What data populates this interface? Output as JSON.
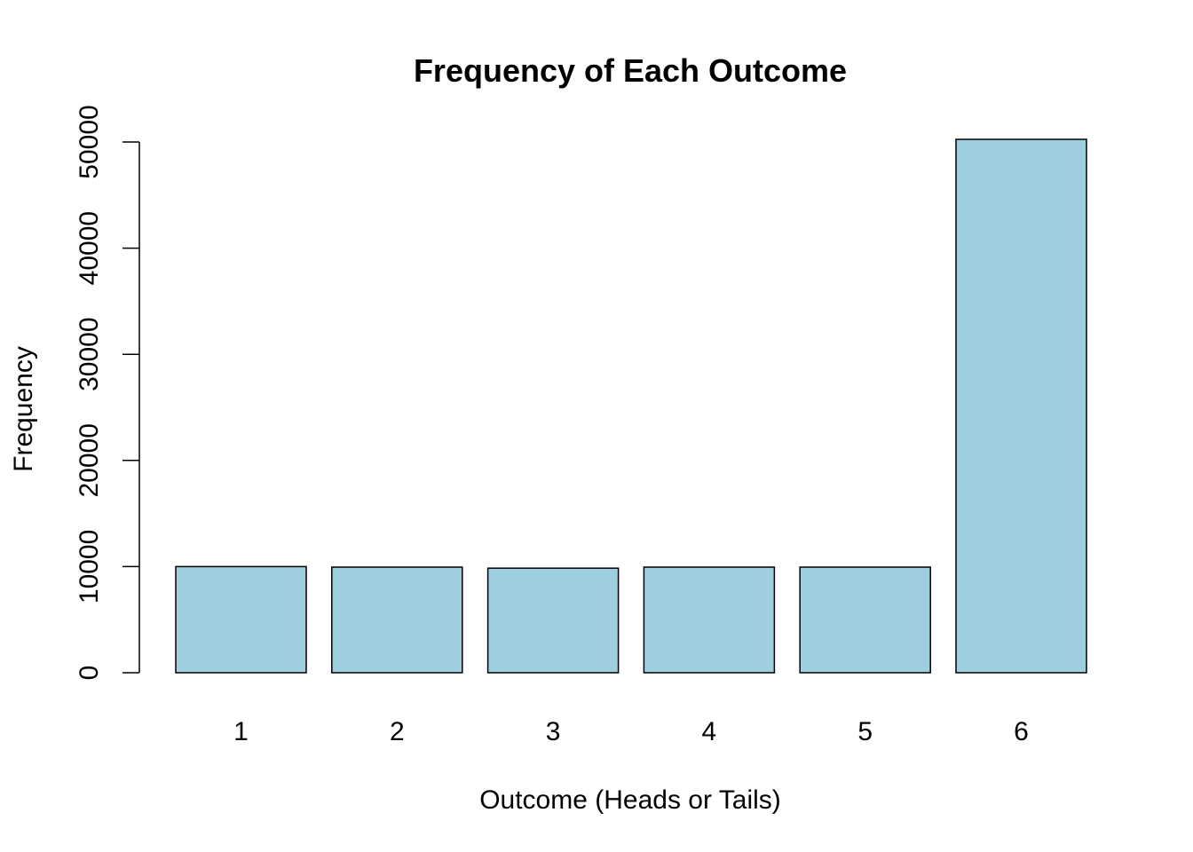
{
  "chart_data": {
    "type": "bar",
    "title": "Frequency of Each Outcome",
    "xlabel": "Outcome (Heads or Tails)",
    "ylabel": "Frequency",
    "categories": [
      "1",
      "2",
      "3",
      "4",
      "5",
      "6"
    ],
    "values": [
      10000,
      9950,
      9850,
      9950,
      9950,
      50250
    ],
    "ylim": [
      0,
      50000
    ],
    "yticks": [
      0,
      10000,
      20000,
      30000,
      40000,
      50000
    ],
    "bar_color": "#9ecfe0",
    "bar_edge_color": "#000000",
    "grid": false,
    "legend": "none"
  }
}
